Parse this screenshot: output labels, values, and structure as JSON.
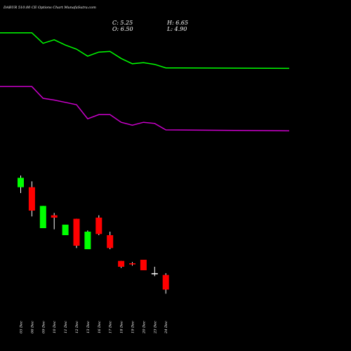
{
  "header": {
    "title": "DABUR 510.00  CE Options  Chart MunafaSutra.com",
    "close": "C: 5.25",
    "high": "H: 6.65",
    "open": "O: 6.50",
    "low": "L: 4.90"
  },
  "chart_data": {
    "type": "candlestick",
    "dates": [
      "05 Dec",
      "06 Dec",
      "09 Dec",
      "10 Dec",
      "11 Dec",
      "12 Dec",
      "13 Dec",
      "16 Dec",
      "17 Dec",
      "18 Dec",
      "19 Dec",
      "20 Dec",
      "23 Dec",
      "24 Dec"
    ],
    "price_range": [
      0,
      30
    ],
    "candles": [
      {
        "date": "05 Dec",
        "open": 14.0,
        "high": 15.0,
        "low": 13.5,
        "close": 14.8,
        "color": "green"
      },
      {
        "date": "06 Dec",
        "open": 14.0,
        "high": 14.5,
        "low": 11.5,
        "close": 12.0,
        "color": "red"
      },
      {
        "date": "09 Dec",
        "open": 10.5,
        "high": 12.4,
        "low": 10.5,
        "close": 12.4,
        "color": "green"
      },
      {
        "date": "10 Dec",
        "open": 11.6,
        "high": 11.8,
        "low": 10.4,
        "close": 11.4,
        "color": "red"
      },
      {
        "date": "11 Dec",
        "open": 9.9,
        "high": 10.8,
        "low": 9.9,
        "close": 10.8,
        "color": "green"
      },
      {
        "date": "12 Dec",
        "open": 11.3,
        "high": 11.3,
        "low": 8.8,
        "close": 9.0,
        "color": "red"
      },
      {
        "date": "13 Dec",
        "open": 8.7,
        "high": 10.3,
        "low": 8.7,
        "close": 10.2,
        "color": "green"
      },
      {
        "date": "16 Dec",
        "open": 11.4,
        "high": 11.6,
        "low": 9.9,
        "close": 10.0,
        "color": "red"
      },
      {
        "date": "17 Dec",
        "open": 9.9,
        "high": 10.2,
        "low": 8.7,
        "close": 8.8,
        "color": "red"
      },
      {
        "date": "18 Dec",
        "open": 7.7,
        "high": 7.7,
        "low": 7.1,
        "close": 7.2,
        "color": "red"
      },
      {
        "date": "19 Dec",
        "open": 7.5,
        "high": 7.6,
        "low": 7.3,
        "close": 7.4,
        "color": "red"
      },
      {
        "date": "20 Dec",
        "open": 7.8,
        "high": 7.8,
        "low": 6.9,
        "close": 6.9,
        "color": "red"
      },
      {
        "date": "23 Dec",
        "open": 6.65,
        "high": 7.2,
        "low": 6.4,
        "close": 6.6,
        "color": "white"
      },
      {
        "date": "24 Dec",
        "open": 6.5,
        "high": 6.65,
        "low": 4.9,
        "close": 5.25,
        "color": "red"
      }
    ],
    "series": [
      {
        "name": "",
        "color": "#00ff00",
        "values": [
          27.2,
          27.2,
          26.3,
          26.6,
          26.15,
          25.8,
          25.2,
          25.55,
          25.6,
          25.0,
          24.55,
          24.65,
          24.5,
          24.2
        ]
      },
      {
        "name": "",
        "color": "#cc00cc",
        "values": [
          22.6,
          22.6,
          21.6,
          21.45,
          21.25,
          21.05,
          19.85,
          20.2,
          20.2,
          19.55,
          19.3,
          19.55,
          19.45,
          18.9
        ]
      }
    ]
  }
}
